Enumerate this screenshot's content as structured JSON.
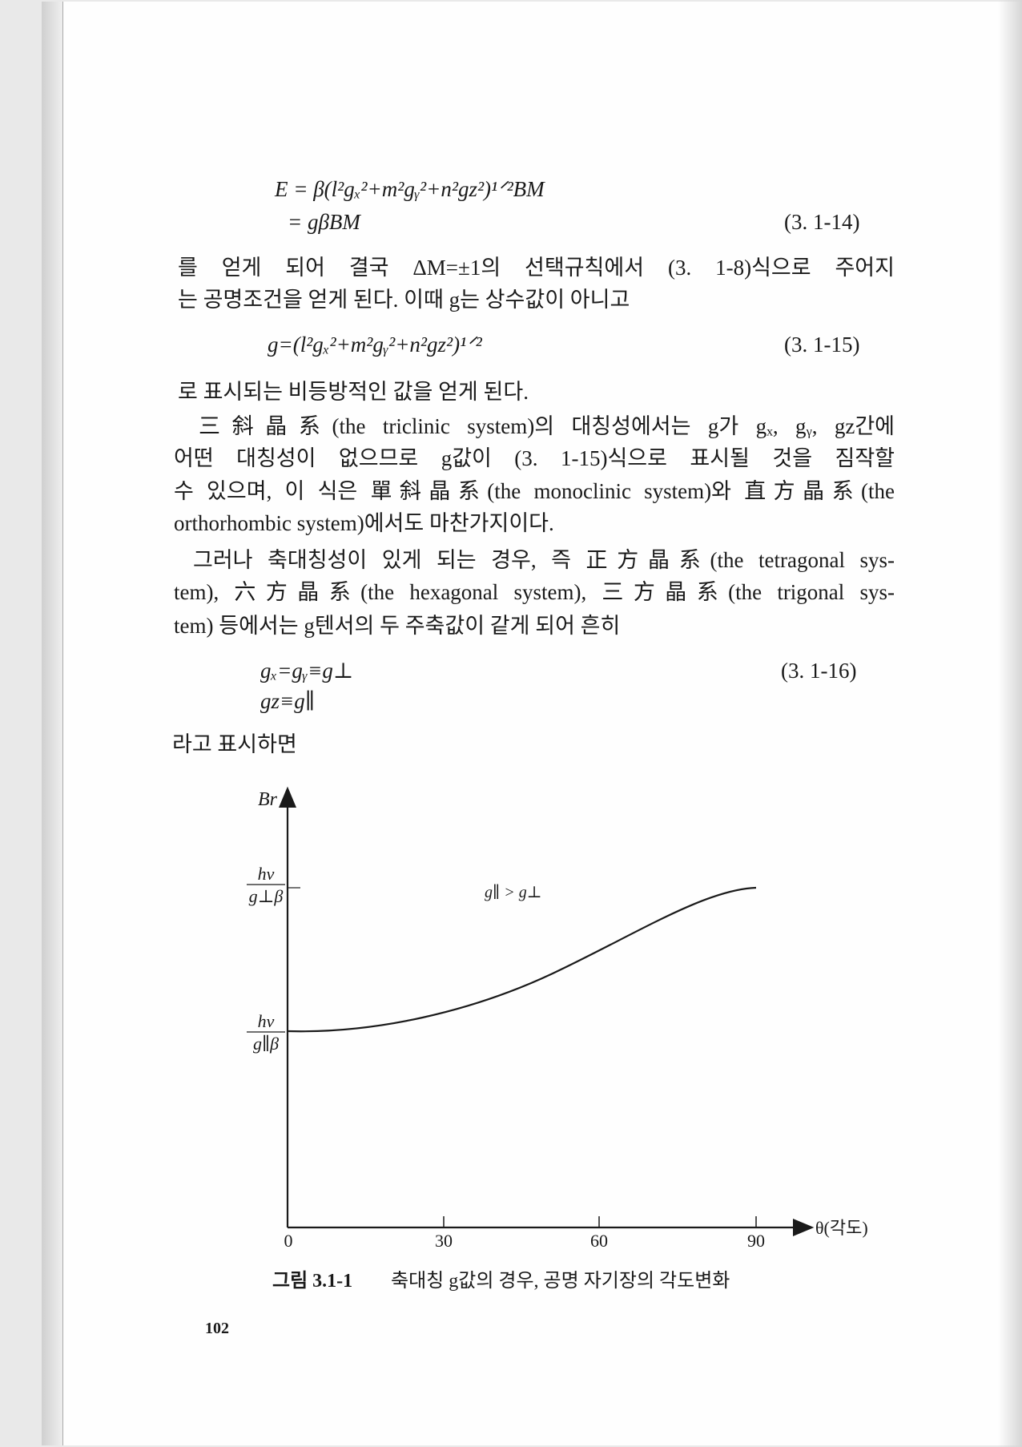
{
  "equations": {
    "eq_3_1_14": {
      "line1": "E = β(l²gₓ²+m²gᵧ²+n²gz²)¹ᐟ²BM",
      "line2": "= gβBM",
      "number": "(3. 1-14)"
    },
    "eq_3_1_15": {
      "line1": "g=(l²gₓ²+m²gᵧ²+n²gz²)¹ᐟ²",
      "number": "(3. 1-15)"
    },
    "eq_3_1_16": {
      "line1": "gₓ=gᵧ≡g⊥",
      "line2": "gz≡g∥",
      "number": "(3. 1-16)"
    }
  },
  "paragraphs": [
    [
      "를 얻게 되어 결국 ΔM=±1의 선택규칙에서 (3. 1-8)식으로 주어지",
      "는 공명조건을 얻게 된다. 이때 g는 상수값이 아니고"
    ],
    [
      "로 표시되는 비등방적인 값을 얻게 된다."
    ],
    [
      "三斜晶系(the triclinic system)의 대칭성에서는 g가 gₓ, gᵧ, gz간에",
      "어떤 대칭성이 없으므로 g값이 (3. 1-15)식으로 표시될 것을 짐작할",
      "수 있으며, 이 식은 單斜晶系(the monoclinic system)와 直方晶系(the",
      "orthorhombic system)에서도 마찬가지이다."
    ],
    [
      "그러나 축대칭성이 있게 되는 경우, 즉 正方晶系(the tetragonal sys-",
      "tem), 六方晶系(the hexagonal system), 三方晶系(the trigonal sys-",
      "tem) 등에서는 g텐서의 두 주축값이 같게 되어 흔히"
    ],
    [
      "라고 표시하면"
    ]
  ],
  "figure": {
    "y_axis_label": "Br",
    "y_labels": [
      {
        "numerator": "hν",
        "denominator": "g⊥β"
      },
      {
        "numerator": "hν",
        "denominator": "g∥β"
      }
    ],
    "x_axis_label": "θ(각도)",
    "x_ticks": [
      0,
      30,
      60,
      90
    ],
    "annotation": "g∥ > g⊥",
    "caption_label": "그림 3.1-1",
    "caption": "축대칭 g값의 경우, 공명 자기장의 각도변화"
  },
  "page_number": "102"
}
